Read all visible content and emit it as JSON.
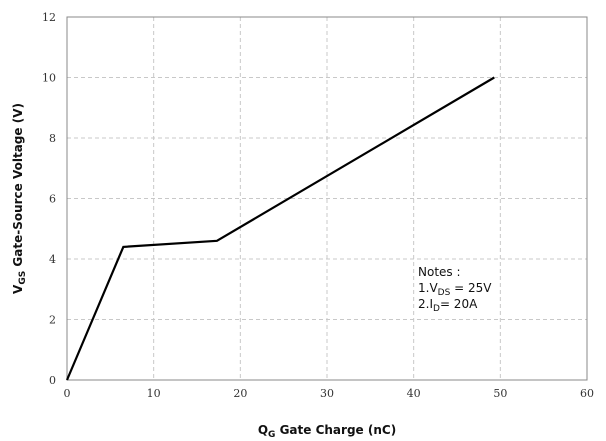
{
  "chart_data": {
    "type": "line",
    "title": "",
    "xlabel": {
      "main": "Q",
      "sub": "G",
      "rest": " Gate Charge (nC)"
    },
    "ylabel": {
      "main": "V",
      "sub": "GS",
      "rest": " Gate-Source Voltage (V)"
    },
    "xlim": [
      0,
      60
    ],
    "ylim": [
      0,
      12
    ],
    "xticks": [
      0,
      10,
      20,
      30,
      40,
      50,
      60
    ],
    "yticks": [
      0,
      2,
      4,
      6,
      8,
      10,
      12
    ],
    "grid": true,
    "series": [
      {
        "x": [
          0,
          6.5,
          17.3,
          49.3
        ],
        "y": [
          0,
          4.4,
          4.6,
          10.0
        ],
        "color": "#000000"
      }
    ],
    "annotations": {
      "heading": "Notes :",
      "line1": {
        "prefix": "1.V",
        "sub": "DS",
        "suffix": " = 25V"
      },
      "line2": {
        "prefix": "2.I",
        "sub": "D",
        "suffix": "= 20A"
      }
    }
  }
}
